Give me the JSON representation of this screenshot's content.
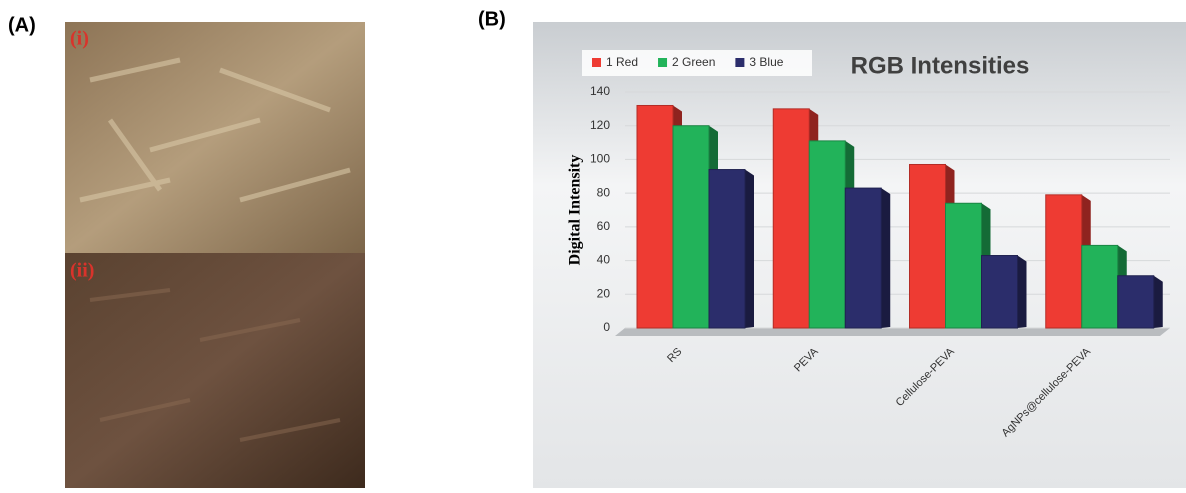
{
  "panel_labels": [
    "(A)",
    "(B)"
  ],
  "photo_labels": [
    "(i)",
    "(ii)"
  ],
  "chart_data": {
    "type": "bar",
    "title": "RGB Intensities",
    "y_label": "Digital Intensity",
    "categories": [
      "RS",
      "PEVA",
      "Cellulose-PEVA",
      "AgNPs@cellulose-PEVA"
    ],
    "series": [
      {
        "name": "1 Red",
        "color": "#ee3b33",
        "values": [
          132,
          130,
          97,
          79
        ]
      },
      {
        "name": "2 Green",
        "color": "#22b35a",
        "values": [
          120,
          111,
          74,
          49
        ]
      },
      {
        "name": "3 Blue",
        "color": "#2b2d6b",
        "values": [
          94,
          83,
          43,
          31
        ]
      }
    ],
    "ylim": [
      0,
      140
    ],
    "yticks": [
      0,
      20,
      40,
      60,
      80,
      100,
      120,
      140
    ],
    "grid": true,
    "legend": "top-left"
  }
}
